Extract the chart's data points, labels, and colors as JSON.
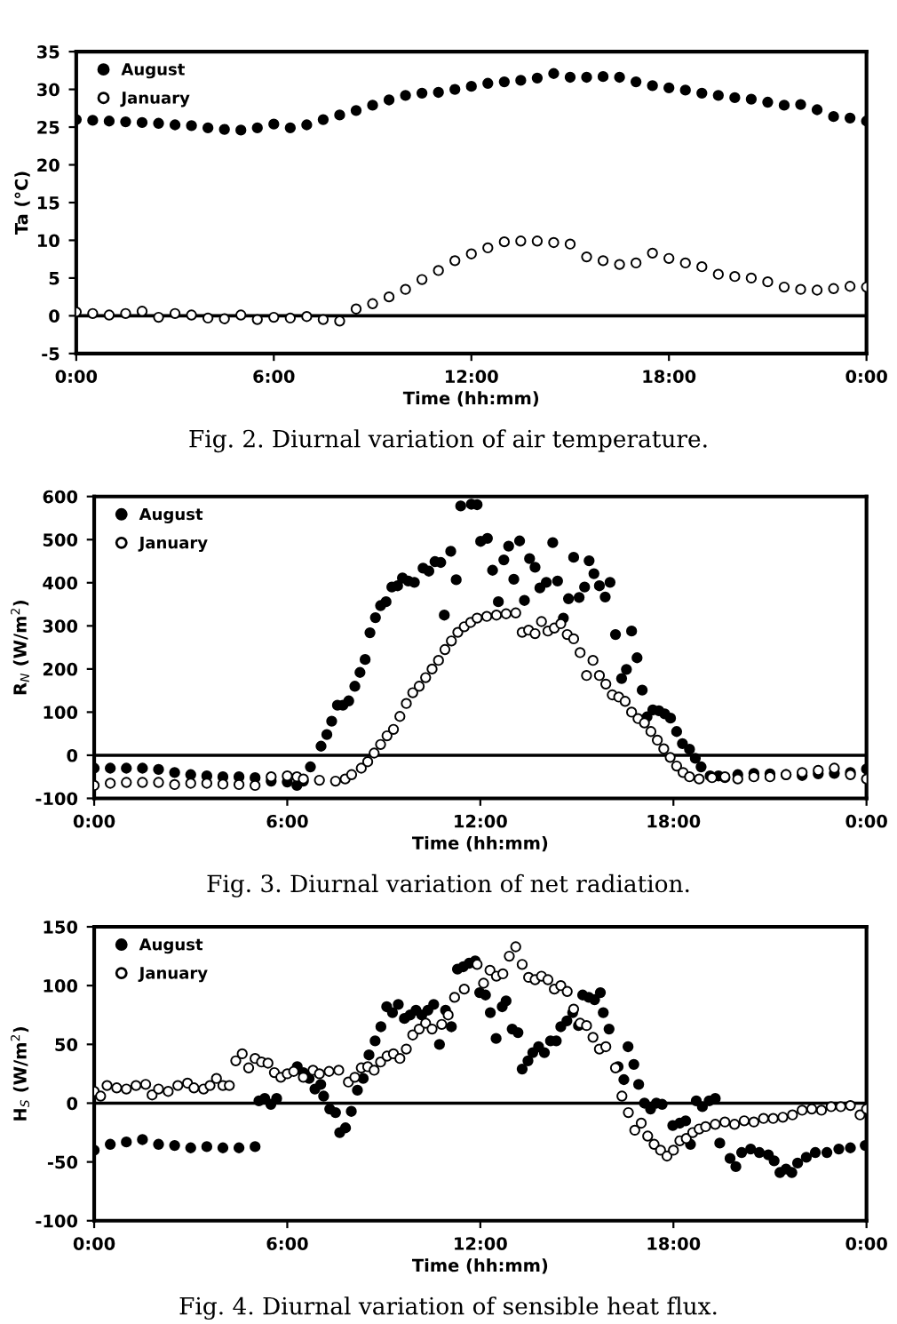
{
  "chart_data": [
    {
      "type": "scatter",
      "title": "Fig. 2. Diurnal variation of air temperature.",
      "xlabel": "Time (hh:mm)",
      "ylabel": "Ta (°C)",
      "xlim": [
        0,
        24
      ],
      "xticks": [
        {
          "value": 0,
          "label": "0:00"
        },
        {
          "value": 6,
          "label": "6:00"
        },
        {
          "value": 12,
          "label": "12:00"
        },
        {
          "value": 18,
          "label": "18:00"
        },
        {
          "value": 24,
          "label": "0:00"
        }
      ],
      "ylim": [
        -5,
        35
      ],
      "yticks": [
        -5,
        0,
        5,
        10,
        15,
        20,
        25,
        30,
        35
      ],
      "grid": false,
      "legend": "top left",
      "marker": "circle",
      "ref_lines": [
        {
          "axis": "y",
          "value": 0,
          "color": "#000000"
        }
      ],
      "x": [
        0,
        0.5,
        1,
        1.5,
        2,
        2.5,
        3,
        3.5,
        4,
        4.5,
        5,
        5.5,
        6,
        6.5,
        7,
        7.5,
        8,
        8.5,
        9,
        9.5,
        10,
        10.5,
        11,
        11.5,
        12,
        12.5,
        13,
        13.5,
        14,
        14.5,
        15,
        15.5,
        16,
        16.5,
        17,
        17.5,
        18,
        18.5,
        19,
        19.5,
        20,
        20.5,
        21,
        21.5,
        22,
        22.5,
        23,
        23.5,
        24
      ],
      "series": [
        {
          "name": "August",
          "color": "#000000",
          "values": [
            26.0,
            25.9,
            25.8,
            25.7,
            25.6,
            25.5,
            25.3,
            25.2,
            24.9,
            24.7,
            24.6,
            24.9,
            25.4,
            24.9,
            25.3,
            26.0,
            26.6,
            27.2,
            27.9,
            28.6,
            29.2,
            29.5,
            29.6,
            30.0,
            30.4,
            30.8,
            31.0,
            31.2,
            31.5,
            32.1,
            31.6,
            31.6,
            31.7,
            31.6,
            31.0,
            30.5,
            30.2,
            29.9,
            29.5,
            29.2,
            28.9,
            28.7,
            28.3,
            27.9,
            28.0,
            27.3,
            26.4,
            26.2,
            25.8
          ]
        },
        {
          "name": "January",
          "color": "#000000",
          "values": [
            0.5,
            0.3,
            0.1,
            0.3,
            0.6,
            -0.2,
            0.3,
            0.1,
            -0.3,
            -0.4,
            0.1,
            -0.5,
            -0.2,
            -0.3,
            -0.1,
            -0.5,
            -0.7,
            0.9,
            1.6,
            2.5,
            3.5,
            4.8,
            6.0,
            7.3,
            8.2,
            9.0,
            9.8,
            9.9,
            9.9,
            9.7,
            9.5,
            7.8,
            7.3,
            6.8,
            7.0,
            8.3,
            7.6,
            7.0,
            6.5,
            5.5,
            5.2,
            5.0,
            4.5,
            3.8,
            3.5,
            3.4,
            3.6,
            3.9,
            3.8
          ]
        }
      ]
    },
    {
      "type": "scatter",
      "title": "Fig. 3. Diurnal variation of net radiation.",
      "xlabel": "Time (hh:mm)",
      "ylabel": "R$_{N}$ (W/m$^{2}$)",
      "xlim": [
        0,
        24
      ],
      "xticks": [
        {
          "value": 0,
          "label": "0:00"
        },
        {
          "value": 6,
          "label": "6:00"
        },
        {
          "value": 12,
          "label": "12:00"
        },
        {
          "value": 18,
          "label": "18:00"
        },
        {
          "value": 24,
          "label": "0:00"
        }
      ],
      "ylim": [
        -100,
        600
      ],
      "yticks": [
        -100,
        0,
        100,
        200,
        300,
        400,
        500,
        600
      ],
      "grid": false,
      "legend": "top left",
      "marker": "circle",
      "ref_lines": [
        {
          "axis": "y",
          "value": 0,
          "color": "#000000"
        }
      ],
      "series": [
        {
          "name": "August",
          "color": "#000000",
          "x": [
            0,
            0.5,
            1,
            1.5,
            2,
            2.5,
            3,
            3.5,
            4,
            4.5,
            5,
            5.5,
            6,
            6.3,
            6.5,
            6.72,
            7.05,
            7.23,
            7.38,
            7.56,
            7.73,
            7.91,
            8.1,
            8.26,
            8.42,
            8.57,
            8.74,
            8.9,
            9.07,
            9.25,
            9.43,
            9.58,
            9.76,
            9.95,
            10.22,
            10.4,
            10.59,
            10.77,
            10.88,
            11.08,
            11.25,
            11.39,
            11.72,
            11.9,
            12.01,
            12.22,
            12.38,
            12.56,
            12.73,
            12.88,
            13.04,
            13.22,
            13.37,
            13.53,
            13.7,
            13.85,
            14.05,
            14.25,
            14.4,
            14.58,
            14.74,
            14.9,
            15.07,
            15.24,
            15.38,
            15.53,
            15.7,
            15.88,
            16.03,
            16.2,
            16.39,
            16.54,
            16.7,
            16.87,
            17.03,
            17.18,
            17.36,
            17.55,
            17.73,
            17.91,
            18.1,
            18.28,
            18.5,
            18.68,
            18.86,
            19.14,
            19.4,
            19.6,
            20,
            20.5,
            21,
            21.5,
            22,
            22.5,
            23,
            23.5,
            24
          ],
          "values": [
            -30,
            -30,
            -30,
            -30,
            -33,
            -40,
            -45,
            -48,
            -50,
            -50,
            -52,
            -60,
            -62,
            -70,
            -60,
            -27,
            21,
            48,
            79,
            116,
            116,
            126,
            160,
            192,
            222,
            284,
            319,
            347,
            356,
            390,
            393,
            411,
            404,
            401,
            434,
            427,
            449,
            447,
            325,
            473,
            407,
            578,
            582,
            581,
            496,
            503,
            429,
            356,
            453,
            485,
            408,
            497,
            359,
            456,
            436,
            388,
            401,
            493,
            404,
            318,
            363,
            459,
            366,
            390,
            451,
            421,
            393,
            367,
            401,
            280,
            178,
            199,
            288,
            226,
            151,
            89,
            105,
            103,
            96,
            86,
            55,
            27,
            14,
            -7,
            -27,
            -48,
            -48,
            -52,
            -45,
            -42,
            -43,
            -45,
            -47,
            -43,
            -42,
            -40,
            -32
          ]
        },
        {
          "name": "January",
          "color": "#000000",
          "x": [
            0,
            0.5,
            1,
            1.5,
            2,
            2.5,
            3,
            3.5,
            4,
            4.5,
            5,
            5.5,
            6,
            6.3,
            6.5,
            7,
            7.5,
            7.8,
            8,
            8.3,
            8.5,
            8.7,
            8.9,
            9.1,
            9.3,
            9.5,
            9.7,
            9.9,
            10.1,
            10.3,
            10.5,
            10.7,
            10.9,
            11.1,
            11.3,
            11.5,
            11.7,
            11.9,
            12.2,
            12.5,
            12.8,
            13.1,
            13.3,
            13.5,
            13.7,
            13.9,
            14.1,
            14.3,
            14.5,
            14.7,
            14.9,
            15.1,
            15.3,
            15.5,
            15.7,
            15.9,
            16.1,
            16.3,
            16.5,
            16.7,
            16.9,
            17.1,
            17.3,
            17.5,
            17.7,
            17.9,
            18.1,
            18.3,
            18.5,
            18.8,
            19.2,
            19.6,
            20,
            20.5,
            21,
            21.5,
            22,
            22.5,
            23,
            23.5,
            24
          ],
          "values": [
            -70,
            -65,
            -63,
            -63,
            -63,
            -68,
            -65,
            -65,
            -67,
            -68,
            -70,
            -50,
            -48,
            -50,
            -55,
            -58,
            -60,
            -55,
            -45,
            -30,
            -15,
            5,
            25,
            45,
            60,
            90,
            120,
            145,
            160,
            180,
            200,
            220,
            245,
            265,
            285,
            298,
            308,
            318,
            322,
            325,
            328,
            330,
            285,
            290,
            282,
            310,
            288,
            295,
            305,
            280,
            270,
            238,
            185,
            220,
            185,
            165,
            140,
            135,
            125,
            100,
            85,
            75,
            55,
            35,
            15,
            -5,
            -25,
            -40,
            -50,
            -55,
            -52,
            -50,
            -55,
            -50,
            -50,
            -45,
            -40,
            -35,
            -30,
            -45,
            -55
          ]
        }
      ]
    },
    {
      "type": "scatter",
      "title": "Fig. 4. Diurnal variation of sensible heat flux.",
      "xlabel": "Time (hh:mm)",
      "ylabel": "H$_{S}$ (W/m$^{2}$)",
      "xlim": [
        0,
        24
      ],
      "xticks": [
        {
          "value": 0,
          "label": "0:00"
        },
        {
          "value": 6,
          "label": "6:00"
        },
        {
          "value": 12,
          "label": "12:00"
        },
        {
          "value": 18,
          "label": "18:00"
        },
        {
          "value": 24,
          "label": "0:00"
        }
      ],
      "ylim": [
        -100,
        150
      ],
      "yticks": [
        -100,
        -50,
        0,
        50,
        100,
        150
      ],
      "grid": false,
      "legend": "top left",
      "marker": "circle",
      "ref_lines": [
        {
          "axis": "y",
          "value": 0,
          "color": "#000000"
        }
      ],
      "series": [
        {
          "name": "August",
          "color": "#000000",
          "x": [
            0,
            0.5,
            1,
            1.5,
            2,
            2.5,
            3,
            3.5,
            4,
            4.5,
            5,
            5.12,
            5.3,
            5.49,
            5.67,
            6.31,
            6.5,
            6.68,
            6.86,
            7.04,
            7.13,
            7.32,
            7.5,
            7.63,
            7.81,
            7.99,
            8.18,
            8.36,
            8.54,
            8.73,
            8.91,
            9.09,
            9.27,
            9.45,
            9.64,
            9.82,
            10,
            10.18,
            10.37,
            10.55,
            10.73,
            10.92,
            11.1,
            11.29,
            11.47,
            11.65,
            11.84,
            11.98,
            12.16,
            12.31,
            12.49,
            12.68,
            12.8,
            12.99,
            13.17,
            13.3,
            13.48,
            13.63,
            13.81,
            13.99,
            14.18,
            14.36,
            14.5,
            14.69,
            14.87,
            15.05,
            15.18,
            15.37,
            15.55,
            15.73,
            15.82,
            16,
            16.28,
            16.46,
            16.59,
            16.77,
            16.92,
            17.1,
            17.29,
            17.47,
            17.65,
            17.98,
            18.2,
            18.38,
            18.53,
            18.71,
            18.9,
            19.11,
            19.3,
            19.44,
            19.76,
            19.94,
            20.12,
            20.4,
            20.67,
            20.95,
            21.13,
            21.31,
            21.5,
            21.68,
            21.86,
            22.13,
            22.41,
            22.77,
            23.14,
            23.5,
            23.96
          ],
          "values": [
            -40,
            -35,
            -33,
            -31,
            -35,
            -36,
            -38,
            -37,
            -38,
            -38,
            -37,
            2,
            4,
            -1,
            4,
            31,
            26,
            21,
            12,
            16,
            6,
            -5,
            -8,
            -25,
            -21,
            -7,
            11,
            21,
            41,
            53,
            65,
            82,
            77,
            84,
            72,
            75,
            79,
            75,
            79,
            84,
            50,
            79,
            65,
            114,
            116,
            119,
            121,
            94,
            92,
            77,
            55,
            82,
            87,
            63,
            60,
            29,
            36,
            43,
            48,
            43,
            53,
            53,
            65,
            70,
            77,
            66,
            92,
            90,
            88,
            94,
            77,
            63,
            31,
            20,
            48,
            33,
            16,
            0,
            -5,
            0,
            -1,
            -19,
            -17,
            -15,
            -35,
            2,
            -3,
            2,
            4,
            -34,
            -47,
            -54,
            -42,
            -39,
            -42,
            -44,
            -49,
            -59,
            -56,
            -59,
            -51,
            -46,
            -42,
            -42,
            -39,
            -38,
            -36
          ]
        },
        {
          "name": "January",
          "color": "#000000",
          "x": [
            0,
            0.2,
            0.4,
            0.7,
            1,
            1.3,
            1.6,
            1.8,
            2,
            2.3,
            2.6,
            2.9,
            3.1,
            3.4,
            3.6,
            3.8,
            4,
            4.2,
            4.4,
            4.6,
            4.8,
            5,
            5.2,
            5.4,
            5.6,
            5.8,
            6,
            6.2,
            6.5,
            6.8,
            7,
            7.3,
            7.6,
            7.9,
            8.1,
            8.3,
            8.5,
            8.7,
            8.9,
            9.1,
            9.3,
            9.5,
            9.7,
            9.9,
            10.1,
            10.3,
            10.5,
            10.8,
            11,
            11.2,
            11.5,
            11.9,
            12.1,
            12.3,
            12.5,
            12.7,
            12.9,
            13.1,
            13.3,
            13.5,
            13.7,
            13.9,
            14.1,
            14.3,
            14.5,
            14.7,
            14.9,
            15.1,
            15.3,
            15.5,
            15.7,
            15.9,
            16.2,
            16.4,
            16.6,
            16.8,
            17,
            17.2,
            17.4,
            17.6,
            17.8,
            18,
            18.2,
            18.4,
            18.6,
            18.8,
            19,
            19.3,
            19.6,
            19.9,
            20.2,
            20.5,
            20.8,
            21.1,
            21.4,
            21.7,
            22,
            22.3,
            22.6,
            22.9,
            23.2,
            23.5,
            23.8,
            24
          ],
          "values": [
            10,
            6,
            15,
            13,
            12,
            15,
            16,
            7,
            12,
            10,
            15,
            17,
            13,
            12,
            15,
            21,
            15,
            15,
            36,
            42,
            30,
            38,
            35,
            34,
            26,
            22,
            25,
            27,
            22,
            28,
            25,
            27,
            28,
            18,
            22,
            30,
            31,
            28,
            35,
            40,
            42,
            38,
            46,
            58,
            63,
            68,
            63,
            67,
            75,
            90,
            97,
            118,
            102,
            113,
            108,
            110,
            125,
            133,
            118,
            107,
            105,
            108,
            105,
            97,
            100,
            95,
            80,
            68,
            66,
            56,
            46,
            48,
            30,
            6,
            -8,
            -23,
            -17,
            -28,
            -35,
            -40,
            -45,
            -40,
            -32,
            -30,
            -25,
            -22,
            -20,
            -18,
            -16,
            -18,
            -15,
            -16,
            -13,
            -13,
            -12,
            -10,
            -6,
            -5,
            -6,
            -3,
            -3,
            -2,
            -10,
            -5
          ]
        }
      ]
    }
  ]
}
